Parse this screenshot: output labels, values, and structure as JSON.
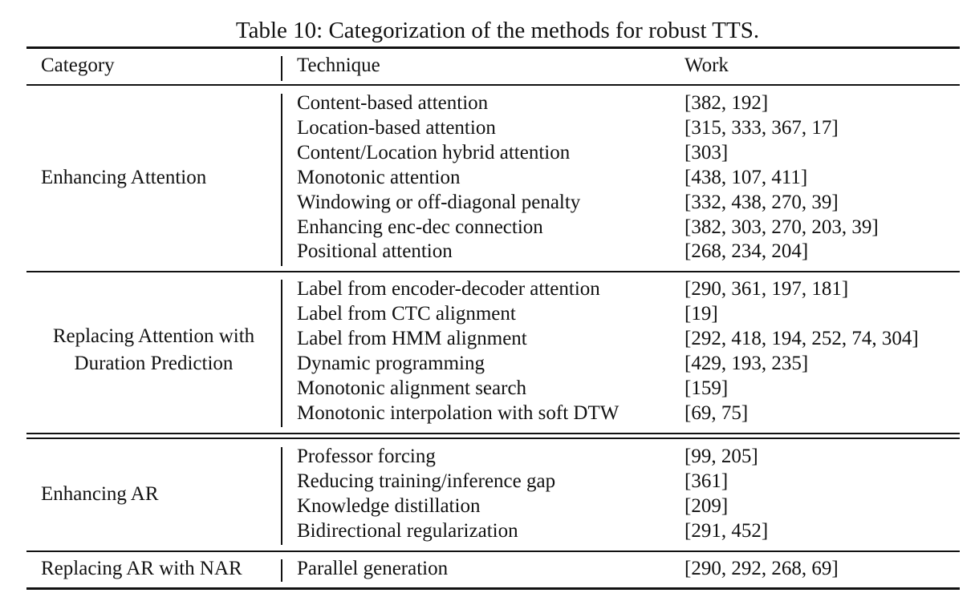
{
  "caption": "Table 10: Categorization of the methods for robust TTS.",
  "header": {
    "category": "Category",
    "technique": "Technique",
    "work": "Work"
  },
  "groups": [
    {
      "category": "Enhancing Attention",
      "rows": [
        {
          "technique": "Content-based attention",
          "work": "[382, 192]"
        },
        {
          "technique": "Location-based attention",
          "work": "[315, 333, 367, 17]"
        },
        {
          "technique": "Content/Location hybrid attention",
          "work": "[303]"
        },
        {
          "technique": "Monotonic attention",
          "work": "[438, 107, 411]"
        },
        {
          "technique": "Windowing or off-diagonal penalty",
          "work": "[332, 438, 270, 39]"
        },
        {
          "technique": "Enhancing enc-dec connection",
          "work": "[382, 303, 270, 203, 39]"
        },
        {
          "technique": "Positional attention",
          "work": "[268, 234, 204]"
        }
      ]
    },
    {
      "category_line1": "Replacing Attention with",
      "category_line2": "Duration Prediction",
      "rows": [
        {
          "technique": "Label from encoder-decoder attention",
          "work": "[290, 361, 197, 181]"
        },
        {
          "technique": "Label from CTC alignment",
          "work": "[19]"
        },
        {
          "technique": "Label from HMM alignment",
          "work": "[292, 418, 194, 252, 74, 304]"
        },
        {
          "technique": "Dynamic programming",
          "work": "[429, 193, 235]"
        },
        {
          "technique": "Monotonic alignment search",
          "work": "[159]"
        },
        {
          "technique": "Monotonic interpolation with soft DTW",
          "work": "[69, 75]"
        }
      ]
    },
    {
      "category": "Enhancing AR",
      "rows": [
        {
          "technique": "Professor forcing",
          "work": "[99, 205]"
        },
        {
          "technique": "Reducing training/inference gap",
          "work": "[361]"
        },
        {
          "technique": "Knowledge distillation",
          "work": "[209]"
        },
        {
          "technique": "Bidirectional regularization",
          "work": "[291, 452]"
        }
      ]
    },
    {
      "category": "Replacing AR with NAR",
      "rows": [
        {
          "technique": "Parallel generation",
          "work": "[290, 292, 268, 69]"
        }
      ]
    }
  ]
}
